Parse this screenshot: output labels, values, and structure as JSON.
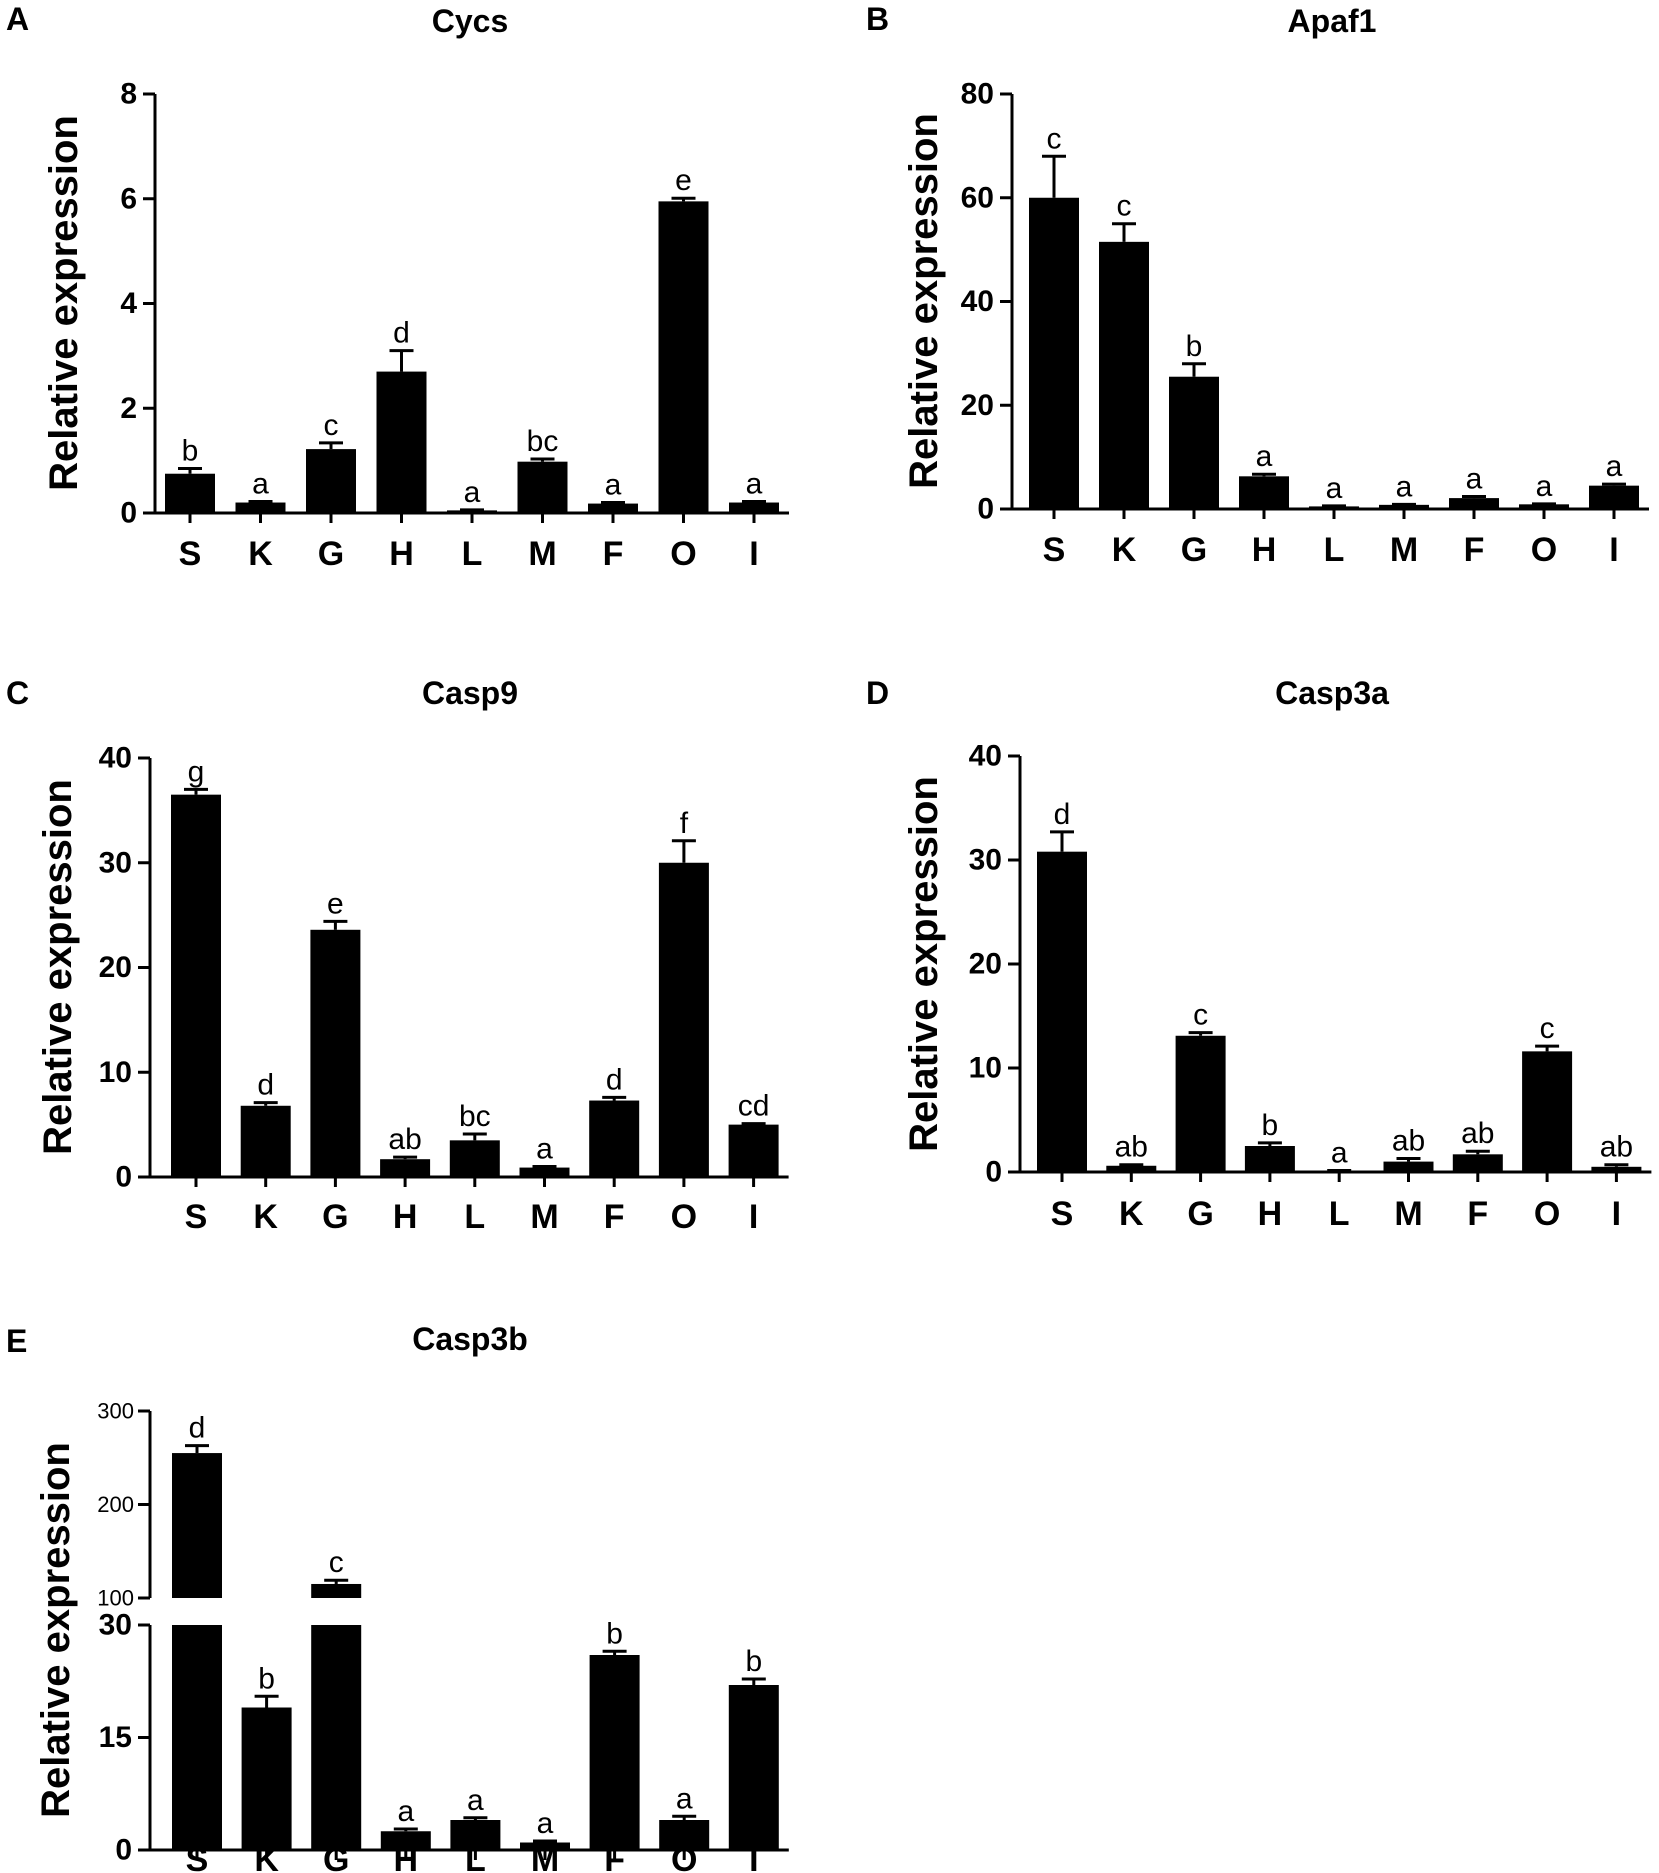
{
  "chart_data": [
    {
      "panel": "A",
      "type": "bar",
      "title": "Cycs",
      "xlabel": "",
      "ylabel": "Relative expression",
      "ylim": [
        0,
        8
      ],
      "yticks": [
        0,
        2,
        4,
        6,
        8
      ],
      "categories": [
        "S",
        "K",
        "G",
        "H",
        "L",
        "M",
        "F",
        "O",
        "I"
      ],
      "values": [
        0.75,
        0.2,
        1.22,
        2.7,
        0.05,
        0.98,
        0.18,
        5.95,
        0.2
      ],
      "errors": [
        0.1,
        0.02,
        0.12,
        0.4,
        0.01,
        0.05,
        0.02,
        0.06,
        0.02
      ],
      "significance": [
        "b",
        "a",
        "c",
        "d",
        "a",
        "bc",
        "a",
        "e",
        "a"
      ]
    },
    {
      "panel": "B",
      "type": "bar",
      "title": "Apaf1",
      "xlabel": "",
      "ylabel": "Relative expression",
      "ylim": [
        0,
        80
      ],
      "yticks": [
        0,
        20,
        40,
        60,
        80
      ],
      "categories": [
        "S",
        "K",
        "G",
        "H",
        "L",
        "M",
        "F",
        "O",
        "I"
      ],
      "values": [
        60,
        51.5,
        25.5,
        6.3,
        0.5,
        0.8,
        2.1,
        0.9,
        4.5
      ],
      "errors": [
        8,
        3.5,
        2.5,
        0.4,
        0.1,
        0.1,
        0.3,
        0.1,
        0.3
      ],
      "significance": [
        "c",
        "c",
        "b",
        "a",
        "a",
        "a",
        "a",
        "a",
        "a"
      ]
    },
    {
      "panel": "C",
      "type": "bar",
      "title": "Casp9",
      "xlabel": "",
      "ylabel": "Relative expression",
      "ylim": [
        0,
        40
      ],
      "yticks": [
        0,
        10,
        20,
        30,
        40
      ],
      "categories": [
        "S",
        "K",
        "G",
        "H",
        "L",
        "M",
        "F",
        "O",
        "I"
      ],
      "values": [
        36.5,
        6.8,
        23.6,
        1.7,
        3.5,
        0.9,
        7.3,
        30,
        5
      ],
      "errors": [
        0.5,
        0.3,
        0.8,
        0.2,
        0.6,
        0.1,
        0.3,
        2.1,
        0.1
      ],
      "significance": [
        "g",
        "d",
        "e",
        "ab",
        "bc",
        "a",
        "d",
        "f",
        "cd"
      ]
    },
    {
      "panel": "D",
      "type": "bar",
      "title": "Casp3a",
      "xlabel": "",
      "ylabel": "Relative expression",
      "ylim": [
        0,
        40
      ],
      "yticks": [
        0,
        10,
        20,
        30,
        40
      ],
      "categories": [
        "S",
        "K",
        "G",
        "H",
        "L",
        "M",
        "F",
        "O",
        "I"
      ],
      "values": [
        30.8,
        0.6,
        13.1,
        2.5,
        0.1,
        1,
        1.7,
        11.6,
        0.5
      ],
      "errors": [
        1.9,
        0.1,
        0.3,
        0.3,
        0.05,
        0.3,
        0.3,
        0.5,
        0.2
      ],
      "significance": [
        "d",
        "ab",
        "c",
        "b",
        "a",
        "ab",
        "ab",
        "c",
        "ab"
      ]
    },
    {
      "panel": "E",
      "type": "bar",
      "title": "Casp3b",
      "xlabel": "",
      "ylabel": "Relative expression",
      "axis_break": {
        "lower_range": [
          0,
          30
        ],
        "upper_range": [
          100,
          300
        ]
      },
      "yticks_lower": [
        0,
        15,
        30
      ],
      "yticks_upper": [
        100,
        200,
        300
      ],
      "categories": [
        "S",
        "K",
        "G",
        "H",
        "L",
        "M",
        "F",
        "O",
        "I"
      ],
      "values": [
        255,
        19,
        115,
        2.5,
        4,
        1,
        26,
        4,
        22
      ],
      "errors": [
        8,
        1.5,
        4,
        0.3,
        0.3,
        0.2,
        0.5,
        0.5,
        0.8
      ],
      "significance": [
        "d",
        "b",
        "c",
        "a",
        "a",
        "a",
        "b",
        "a",
        "b"
      ]
    }
  ]
}
